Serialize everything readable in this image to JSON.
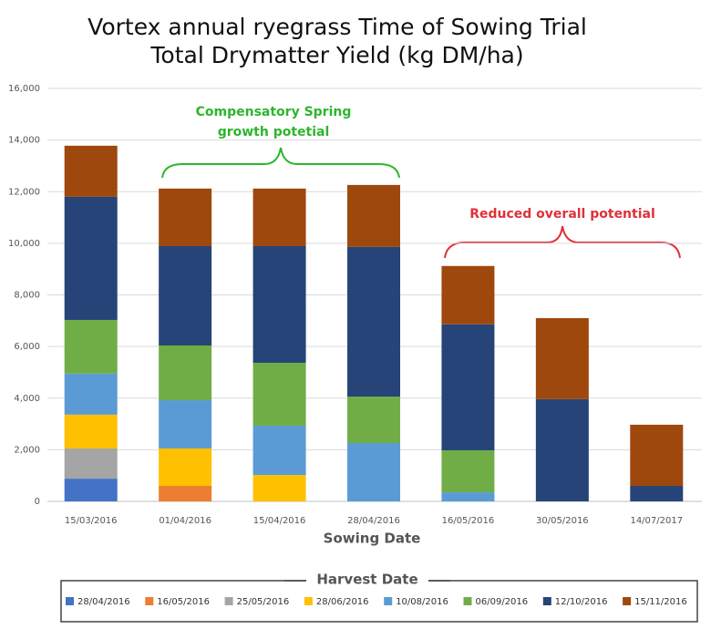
{
  "chart_data": {
    "type": "stacked_bar",
    "title": [
      "Vortex annual ryegrass Time of Sowing Trial",
      "Total Drymatter Yield (kg DM/ha)"
    ],
    "annotations": [
      [
        "Compensatory Spring",
        "growth potetial"
      ],
      [
        "Reduced overall potential"
      ]
    ],
    "x_label": "Sowing Date",
    "legend_title": "Harvest Date",
    "categories": [
      "15/03/2016",
      "01/04/2016",
      "15/04/2016",
      "28/04/2016",
      "16/05/2016",
      "30/05/2016",
      "14/07/2017"
    ],
    "series": [
      {
        "name": "28/04/2016",
        "color": "#4472c4",
        "values": [
          880,
          null,
          null,
          null,
          null,
          null,
          null
        ]
      },
      {
        "name": "16/05/2016",
        "color": "#ed7d31",
        "values": [
          null,
          600,
          null,
          null,
          null,
          null,
          null
        ]
      },
      {
        "name": "25/05/2016",
        "color": "#a5a5a5",
        "values": [
          1170,
          null,
          null,
          null,
          null,
          null,
          null
        ]
      },
      {
        "name": "28/06/2016",
        "color": "#ffc000",
        "values": [
          1310,
          1450,
          1020,
          null,
          null,
          null,
          null
        ]
      },
      {
        "name": "10/08/2016",
        "color": "#5b9bd5",
        "values": [
          1590,
          1870,
          1910,
          2260,
          350,
          null,
          null
        ]
      },
      {
        "name": "06/09/2016",
        "color": "#70ad47",
        "values": [
          2080,
          2120,
          2440,
          1800,
          1630,
          null,
          null
        ]
      },
      {
        "name": "12/10/2016",
        "color": "#264478",
        "values": [
          4770,
          3850,
          4520,
          5800,
          4880,
          3960,
          600
        ]
      },
      {
        "name": "15/11/2016",
        "color": "#9e480e",
        "values": [
          1980,
          2230,
          2230,
          2400,
          2260,
          3140,
          2370
        ]
      }
    ],
    "ylim": [
      0,
      16000
    ],
    "yticks": [
      0,
      {
        "value": 2000,
        "label": "2,000"
      },
      {
        "value": 4000,
        "label": "4,000"
      },
      {
        "value": 6000,
        "label": "6,000"
      },
      {
        "value": 8000,
        "label": "8,000"
      },
      {
        "value": 10000,
        "label": "10,000"
      },
      {
        "value": 12000,
        "label": "12,000"
      },
      {
        "value": 14000,
        "label": "14,000"
      },
      {
        "value": 16000,
        "label": "16,000"
      }
    ],
    "grid": true
  }
}
